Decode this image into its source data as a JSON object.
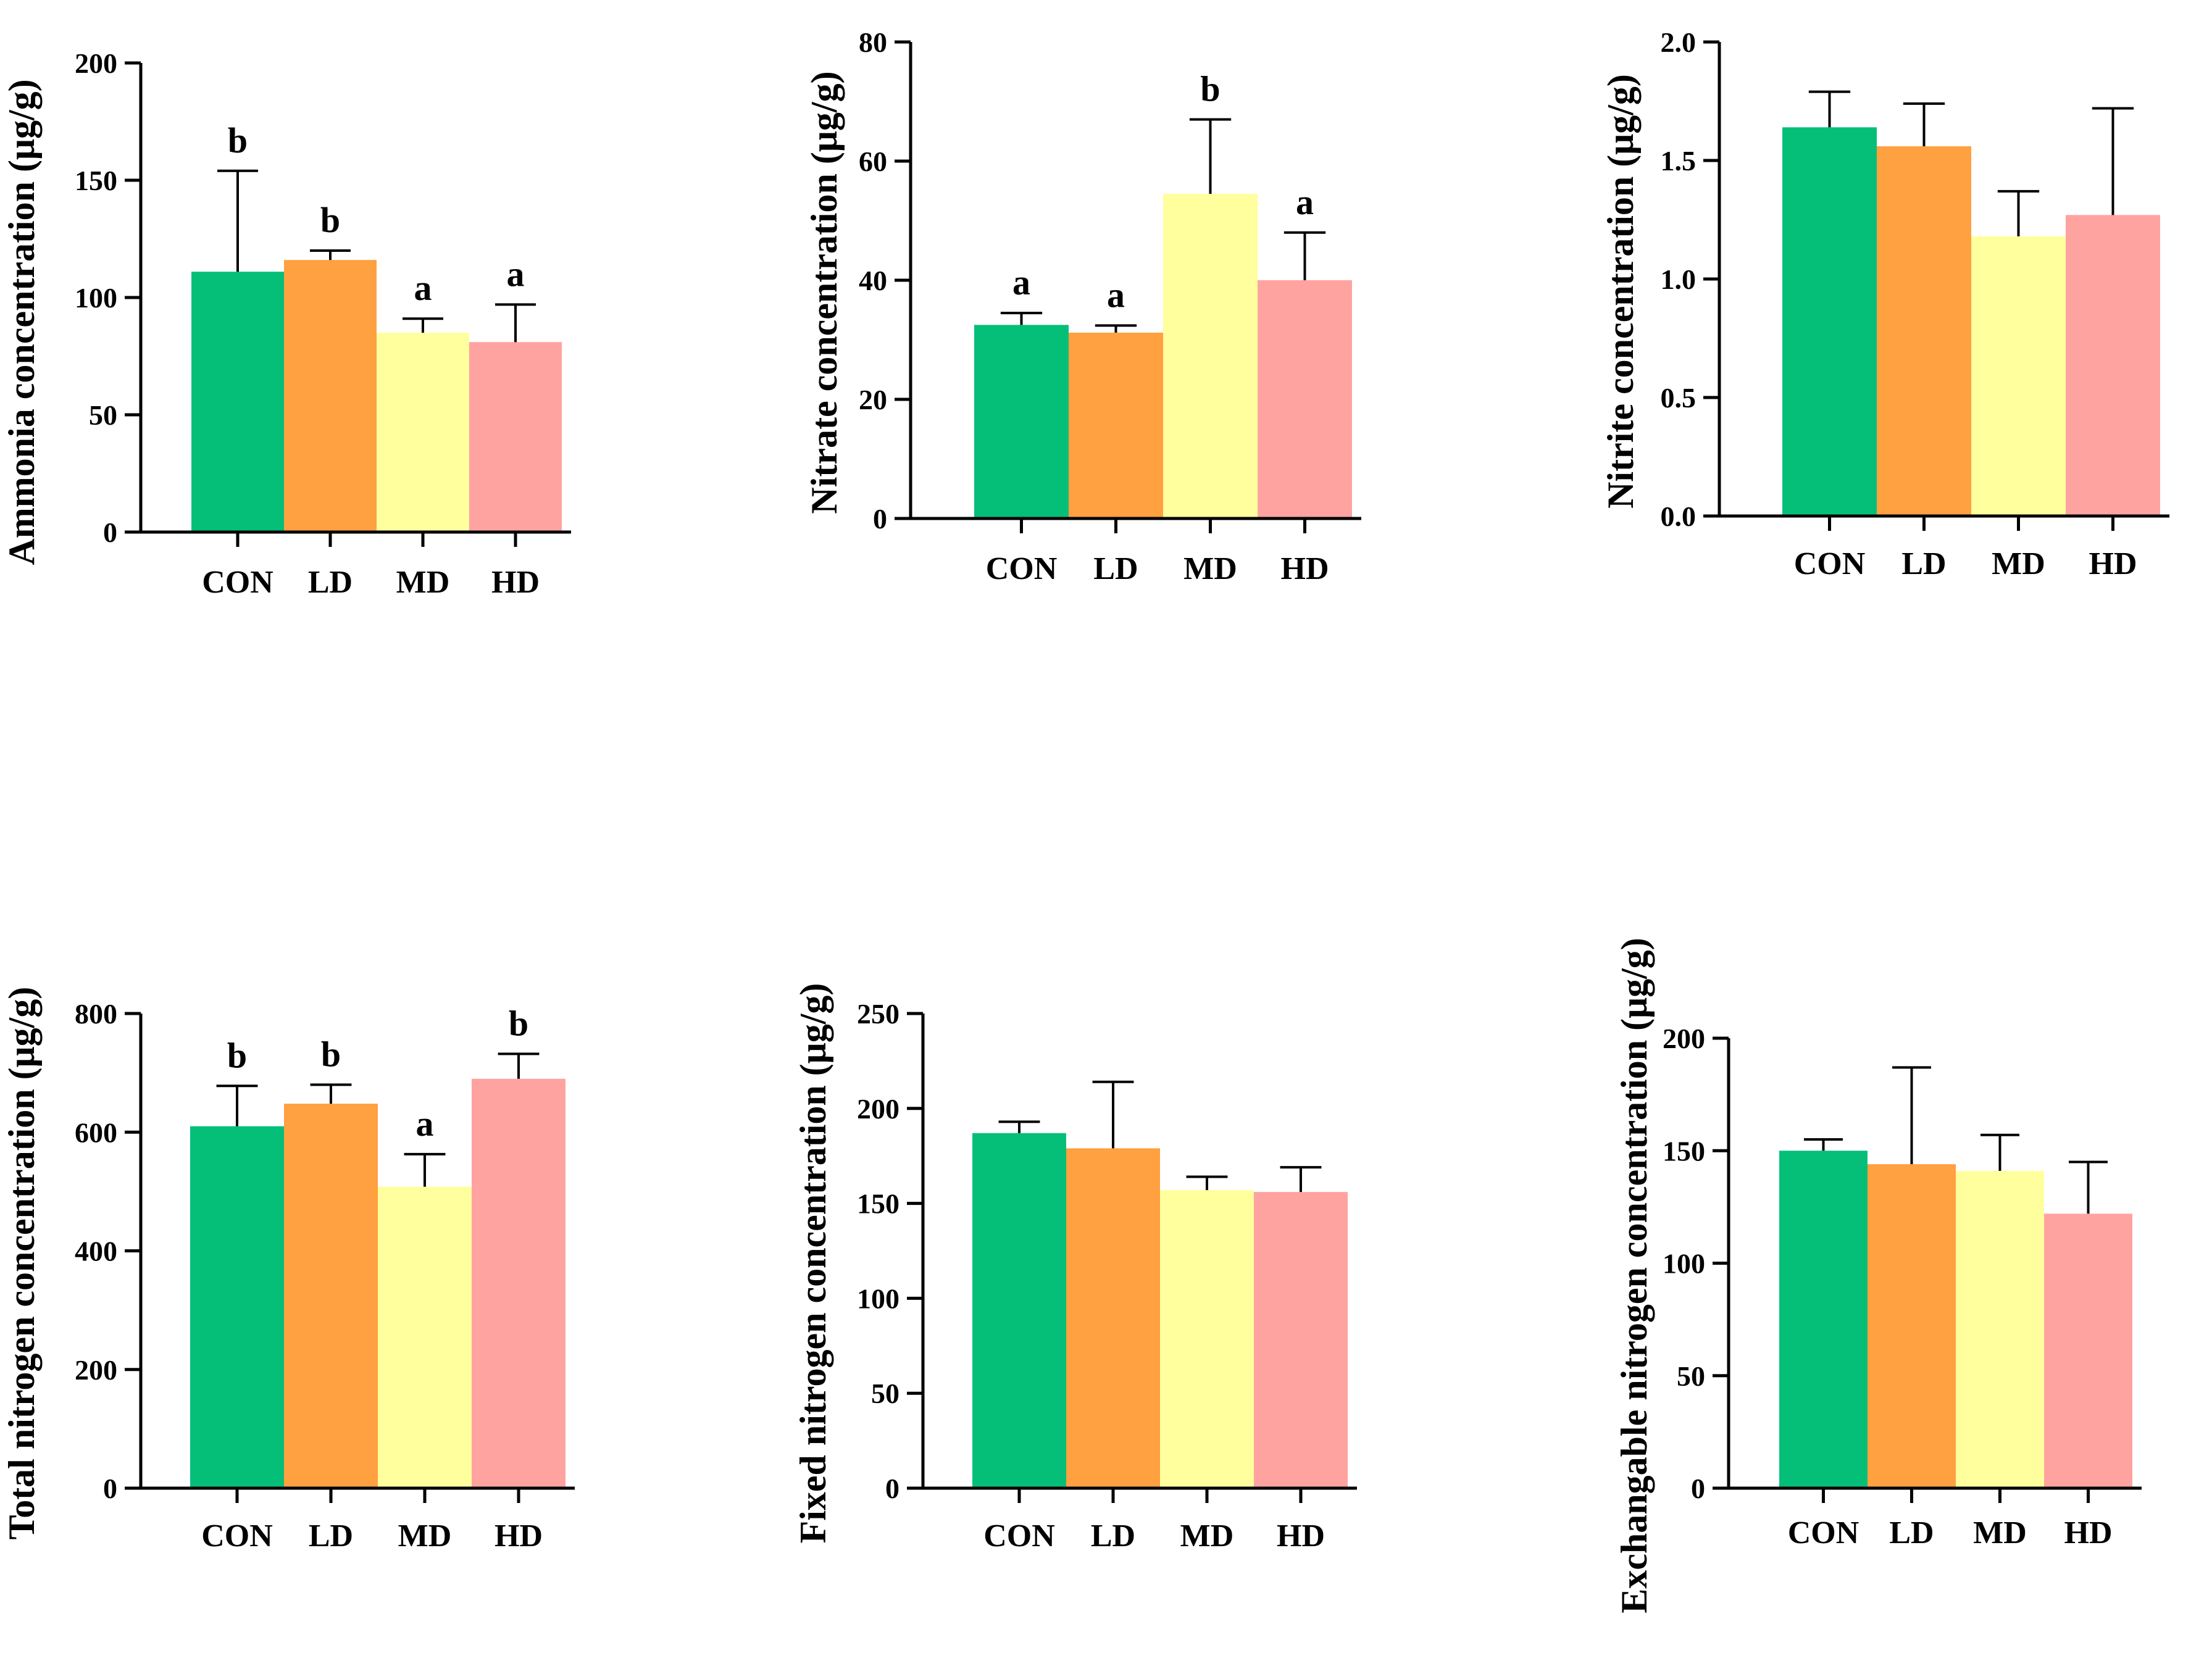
{
  "categories": [
    "CON",
    "LD",
    "MD",
    "HD"
  ],
  "colors": {
    "CON": "#05BF78",
    "LD": "#FFA041",
    "MD": "#FFFF9E",
    "HD": "#FFA3A0"
  },
  "chart_data": [
    {
      "type": "bar",
      "ylabel": "Ammonia concentration (μg/g)",
      "ylim": [
        0,
        200
      ],
      "ticks": [
        0,
        50,
        100,
        150,
        200
      ],
      "tick_labels": [
        "0",
        "50",
        "100",
        "150",
        "200"
      ],
      "categories": [
        "CON",
        "LD",
        "MD",
        "HD"
      ],
      "values": [
        111,
        116,
        85,
        81
      ],
      "errors": [
        43,
        4,
        6,
        16
      ],
      "letters": [
        "b",
        "b",
        "a",
        "a"
      ]
    },
    {
      "type": "bar",
      "ylabel": "Nitrate concentration (μg/g)",
      "ylim": [
        0,
        80
      ],
      "ticks": [
        0,
        20,
        40,
        60,
        80
      ],
      "tick_labels": [
        "0",
        "20",
        "40",
        "60",
        "80"
      ],
      "categories": [
        "CON",
        "LD",
        "MD",
        "HD"
      ],
      "values": [
        32.5,
        31.2,
        54.5,
        40
      ],
      "errors": [
        2,
        1.2,
        12.5,
        8
      ],
      "letters": [
        "a",
        "a",
        "b",
        "a"
      ]
    },
    {
      "type": "bar",
      "ylabel": "Nitrite concentration (μg/g)",
      "ylim": [
        0,
        2.0
      ],
      "ticks": [
        0,
        0.5,
        1.0,
        1.5,
        2.0
      ],
      "tick_labels": [
        "0.0",
        "0.5",
        "1.0",
        "1.5",
        "2.0"
      ],
      "categories": [
        "CON",
        "LD",
        "MD",
        "HD"
      ],
      "values": [
        1.64,
        1.56,
        1.18,
        1.27
      ],
      "errors": [
        0.15,
        0.18,
        0.19,
        0.45
      ],
      "letters": [
        "",
        "",
        "",
        ""
      ]
    },
    {
      "type": "bar",
      "ylabel": "Total nitrogen concentration (μg/g)",
      "ylim": [
        0,
        800
      ],
      "ticks": [
        0,
        200,
        400,
        600,
        800
      ],
      "tick_labels": [
        "0",
        "200",
        "400",
        "600",
        "800"
      ],
      "categories": [
        "CON",
        "LD",
        "MD",
        "HD"
      ],
      "values": [
        610,
        648,
        508,
        690
      ],
      "errors": [
        68,
        32,
        55,
        42
      ],
      "letters": [
        "b",
        "b",
        "a",
        "b"
      ]
    },
    {
      "type": "bar",
      "ylabel": "Fixed nitrogen concentration (μg/g)",
      "ylim": [
        0,
        250
      ],
      "ticks": [
        0,
        50,
        100,
        150,
        200,
        250
      ],
      "tick_labels": [
        "0",
        "50",
        "100",
        "150",
        "200",
        "250"
      ],
      "categories": [
        "CON",
        "LD",
        "MD",
        "HD"
      ],
      "values": [
        187,
        179,
        157,
        156
      ],
      "errors": [
        6,
        35,
        7,
        13
      ],
      "letters": [
        "",
        "",
        "",
        ""
      ]
    },
    {
      "type": "bar",
      "ylabel": "Exchangable nitrogen concentration (μg/g)",
      "ylim": [
        0,
        200
      ],
      "ticks": [
        0,
        50,
        100,
        150,
        200
      ],
      "tick_labels": [
        "0",
        "50",
        "100",
        "150",
        "200"
      ],
      "categories": [
        "CON",
        "LD",
        "MD",
        "HD"
      ],
      "values": [
        150,
        144,
        141,
        122
      ],
      "errors": [
        5,
        43,
        16,
        23
      ],
      "letters": [
        "",
        "",
        "",
        ""
      ]
    }
  ]
}
